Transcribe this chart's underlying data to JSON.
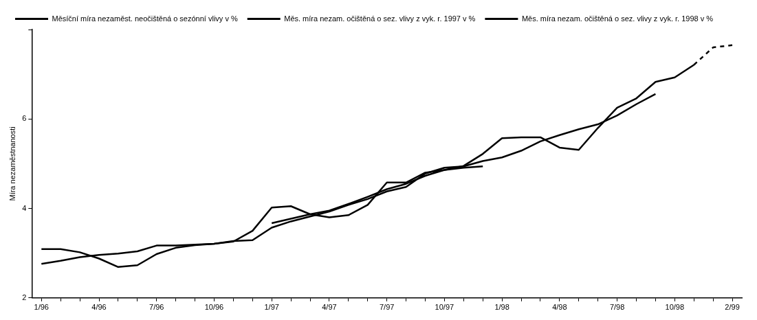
{
  "chart_data": {
    "type": "line",
    "ylabel": "Míra nezaměstnanosti",
    "legend": "top",
    "grid": false,
    "marker": "none",
    "categories": [
      "1/96",
      null,
      null,
      "4/96",
      null,
      null,
      "7/96",
      null,
      null,
      "10/96",
      null,
      null,
      "1/97",
      null,
      null,
      "4/97",
      null,
      null,
      "7/97",
      null,
      null,
      "10/97",
      null,
      null,
      "1/98",
      null,
      null,
      "4/98",
      null,
      null,
      "7/98",
      null,
      null,
      "10/98",
      null,
      null,
      "2/99"
    ],
    "ylim": [
      2,
      8
    ],
    "yticks": [
      {
        "value": 2,
        "label": "2"
      },
      4,
      6,
      {
        "value": 8,
        "label": null
      }
    ],
    "series": [
      {
        "name": "Měsíční míra nezaměst. neočištěná o sezónní vlivy v %",
        "color": "#000000",
        "line_style": "solid",
        "values": [
          3.09,
          3.09,
          3.02,
          2.88,
          2.69,
          2.73,
          2.98,
          3.12,
          3.18,
          3.21,
          3.26,
          3.5,
          4.02,
          4.05,
          3.87,
          3.8,
          3.85,
          4.08,
          4.58,
          4.58,
          4.8,
          4.86,
          4.95,
          5.22,
          5.57,
          5.59,
          5.59,
          5.36,
          5.31,
          5.8,
          6.25,
          6.46,
          6.83,
          6.93,
          7.21,
          null,
          null
        ]
      },
      {
        "name": "Měs. míra nezam. očištěná o sez. vlivy z vyk. r. 1997 v %",
        "color": "#000000",
        "line_style": "solid",
        "values": [
          null,
          null,
          null,
          null,
          null,
          null,
          null,
          null,
          null,
          null,
          null,
          null,
          3.67,
          3.77,
          3.87,
          3.95,
          4.1,
          4.26,
          4.43,
          4.55,
          4.73,
          4.86,
          4.91,
          4.94,
          null,
          null,
          null,
          null,
          null,
          null,
          null,
          null,
          null,
          null,
          null,
          null,
          null
        ]
      },
      {
        "name": "Měs. míra nezam. očištěná o sez. vlivy z vyk. r. 1998 v %",
        "color": "#000000",
        "line_style": "solid",
        "values": [
          2.76,
          2.83,
          2.91,
          2.96,
          2.99,
          3.04,
          3.17,
          3.17,
          3.19,
          3.21,
          3.27,
          3.29,
          3.57,
          3.71,
          3.82,
          3.93,
          4.08,
          4.21,
          4.38,
          4.48,
          4.78,
          4.91,
          4.94,
          5.06,
          5.14,
          5.29,
          5.5,
          5.64,
          5.77,
          5.88,
          6.08,
          6.33,
          6.56,
          null,
          null,
          null,
          null
        ]
      },
      {
        "color": "#000000",
        "line_style": "dashed",
        "values": [
          null,
          null,
          null,
          null,
          null,
          null,
          null,
          null,
          null,
          null,
          null,
          null,
          null,
          null,
          null,
          null,
          null,
          null,
          null,
          null,
          null,
          null,
          null,
          null,
          null,
          null,
          null,
          null,
          null,
          null,
          null,
          null,
          null,
          null,
          7.21,
          7.6,
          7.65
        ]
      }
    ]
  }
}
